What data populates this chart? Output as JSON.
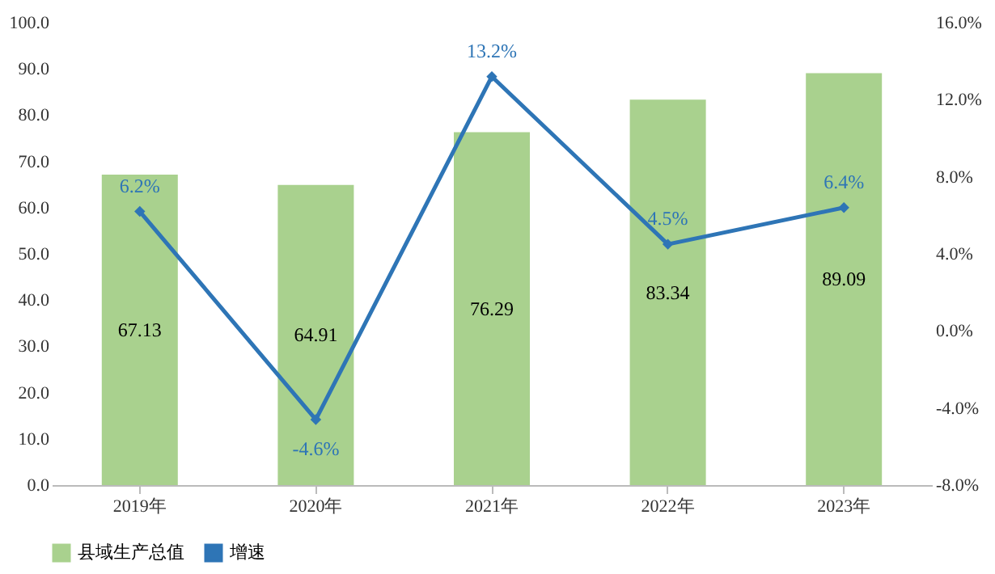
{
  "chart_data": {
    "type": "bar",
    "categories": [
      "2019年",
      "2020年",
      "2021年",
      "2022年",
      "2023年"
    ],
    "series": [
      {
        "name": "县域生产总值",
        "color": "#a9d18e",
        "values": [
          67.13,
          64.91,
          76.29,
          83.34,
          89.09
        ],
        "value_labels": [
          "67.13",
          "64.91",
          "76.29",
          "83.34",
          "89.09"
        ]
      },
      {
        "name": "增速",
        "type": "line",
        "axis": "y2",
        "color": "#2e75b6",
        "values": [
          6.2,
          -4.6,
          13.2,
          4.5,
          6.4
        ],
        "value_labels": [
          "6.2%",
          "-4.6%",
          "13.2%",
          "4.5%",
          "6.4%"
        ]
      }
    ],
    "ylim": [
      0,
      100
    ],
    "yticks": [
      {
        "value": 0,
        "label": "0.0"
      },
      {
        "value": 10,
        "label": "10.0"
      },
      {
        "value": 20,
        "label": "20.0"
      },
      {
        "value": 30,
        "label": "30.0"
      },
      {
        "value": 40,
        "label": "40.0"
      },
      {
        "value": 50,
        "label": "50.0"
      },
      {
        "value": 60,
        "label": "60.0"
      },
      {
        "value": 70,
        "label": "70.0"
      },
      {
        "value": 80,
        "label": "80.0"
      },
      {
        "value": 90,
        "label": "90.0"
      },
      {
        "value": 100,
        "label": "100.0"
      }
    ],
    "y2lim": [
      -8,
      16
    ],
    "y2ticks": [
      {
        "value": -8,
        "label": "-8.0%"
      },
      {
        "value": -4,
        "label": "-4.0%"
      },
      {
        "value": 0,
        "label": "0.0%"
      },
      {
        "value": 4,
        "label": "4.0%"
      },
      {
        "value": 8,
        "label": "8.0%"
      },
      {
        "value": 12,
        "label": "12.0%"
      },
      {
        "value": 16,
        "label": "16.0%"
      }
    ],
    "legend": "bottom",
    "marker": "diamond",
    "line_style": "solid",
    "grid": false
  }
}
